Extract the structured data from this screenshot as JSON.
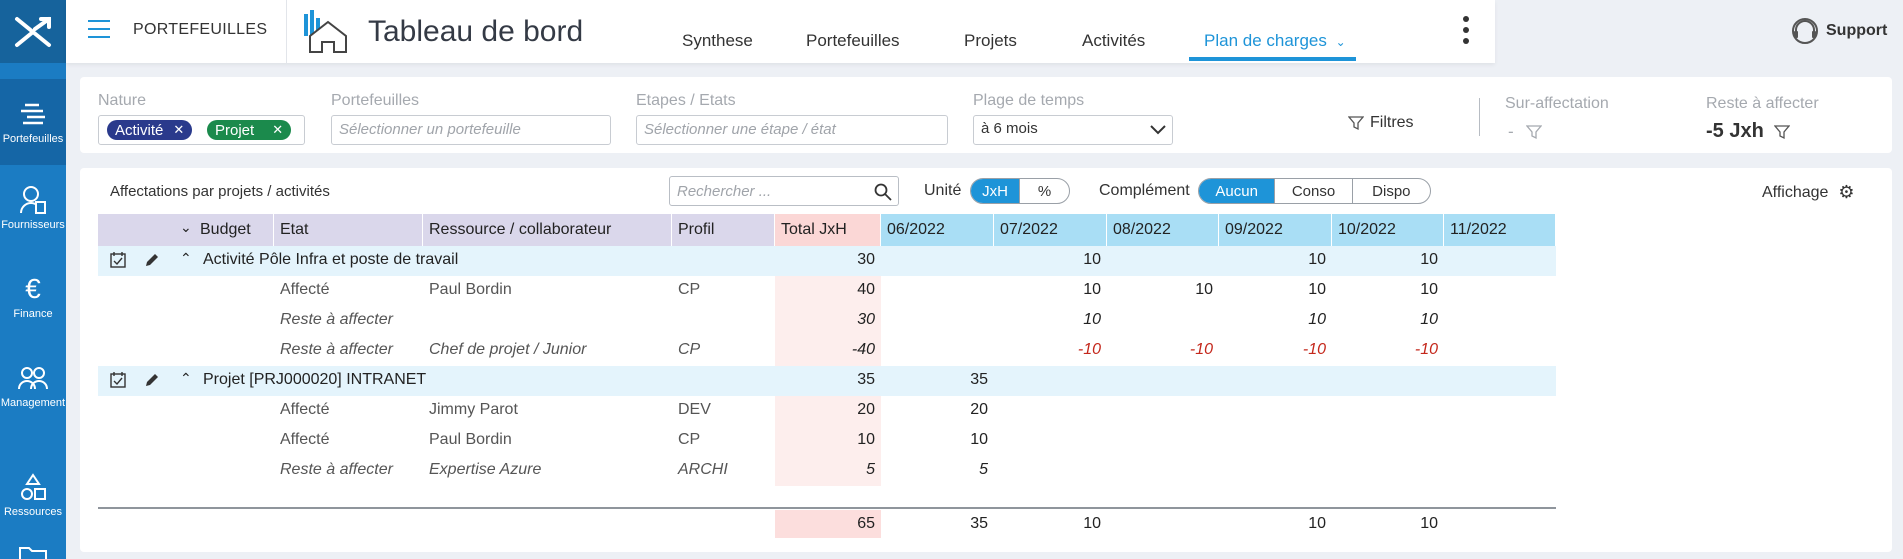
{
  "sidebar": {
    "items": [
      {
        "label": "Portefeuilles",
        "icon": "portfolio-icon"
      },
      {
        "label": "Fournisseurs",
        "icon": "supplier-icon"
      },
      {
        "label": "Finance",
        "icon": "euro-icon"
      },
      {
        "label": "Management",
        "icon": "team-icon"
      },
      {
        "label": "Ressources",
        "icon": "resources-icon"
      }
    ]
  },
  "header": {
    "section_label": "PORTEFEUILLES",
    "title": "Tableau de bord",
    "tabs": [
      {
        "label": "Synthese"
      },
      {
        "label": "Portefeuilles"
      },
      {
        "label": "Projets"
      },
      {
        "label": "Activités"
      },
      {
        "label": "Plan de charges",
        "active": true
      }
    ],
    "support_label": "Support"
  },
  "filters": {
    "nature_label": "Nature",
    "nature_chips": [
      {
        "label": "Activité",
        "color": "#2a3a8c"
      },
      {
        "label": "Projet",
        "color": "#1b8a4c"
      }
    ],
    "portefeuilles_label": "Portefeuilles",
    "portefeuilles_placeholder": "Sélectionner un portefeuille",
    "etapes_label": "Etapes / Etats",
    "etapes_placeholder": "Sélectionner une étape / état",
    "plage_label": "Plage de temps",
    "plage_value": "à 6 mois",
    "filtres_label": "Filtres",
    "sur_affectation_label": "Sur-affectation",
    "sur_affectation_value": "-",
    "reste_label": "Reste à affecter",
    "reste_value": "-5 Jxh"
  },
  "toolbar": {
    "section_title": "Affectations par projets / activités",
    "search_placeholder": "Rechercher ...",
    "unite_label": "Unité",
    "unite_options": [
      "JxH",
      "%"
    ],
    "complement_label": "Complément",
    "complement_options": [
      "Aucun",
      "Conso",
      "Dispo"
    ],
    "affichage_label": "Affichage"
  },
  "table": {
    "headers": {
      "budget": "Budget",
      "etat": "Etat",
      "ressource": "Ressource / collaborateur",
      "profil": "Profil",
      "total": "Total JxH",
      "months": [
        "06/2022",
        "07/2022",
        "08/2022",
        "09/2022",
        "10/2022",
        "11/2022"
      ]
    },
    "groups": [
      {
        "title": "Activité Pôle Infra et poste de travail",
        "total": "30",
        "months": [
          "",
          "10",
          "",
          "10",
          "10",
          ""
        ],
        "rows": [
          {
            "etat": "Affecté",
            "ressource": "Paul Bordin",
            "profil": "CP",
            "total": "40",
            "months": [
              "",
              "10",
              "10",
              "10",
              "10",
              ""
            ],
            "italic": false,
            "negative": false
          },
          {
            "etat": "Reste à affecter",
            "ressource": "",
            "profil": "",
            "total": "30",
            "months": [
              "",
              "10",
              "",
              "10",
              "10",
              ""
            ],
            "italic": true,
            "negative": false
          },
          {
            "etat": "Reste à affecter",
            "ressource": "Chef de projet / Junior",
            "profil": "CP",
            "total": "-40",
            "months": [
              "",
              "-10",
              "-10",
              "-10",
              "-10",
              ""
            ],
            "italic": true,
            "negative": true
          }
        ]
      },
      {
        "title": "Projet [PRJ000020] INTRANET",
        "total": "35",
        "months": [
          "35",
          "",
          "",
          "",
          "",
          ""
        ],
        "rows": [
          {
            "etat": "Affecté",
            "ressource": "Jimmy Parot",
            "profil": "DEV",
            "total": "20",
            "months": [
              "20",
              "",
              "",
              "",
              "",
              ""
            ],
            "italic": false,
            "negative": false
          },
          {
            "etat": "Affecté",
            "ressource": "Paul Bordin",
            "profil": "CP",
            "total": "10",
            "months": [
              "10",
              "",
              "",
              "",
              "",
              ""
            ],
            "italic": false,
            "negative": false
          },
          {
            "etat": "Reste à affecter",
            "ressource": "Expertise Azure",
            "profil": "ARCHI",
            "total": "5",
            "months": [
              "5",
              "",
              "",
              "",
              "",
              ""
            ],
            "italic": true,
            "negative": false
          }
        ]
      }
    ],
    "totals": {
      "total": "65",
      "months": [
        "35",
        "10",
        "",
        "10",
        "10",
        ""
      ]
    }
  },
  "colors": {
    "accent": "#1e94d8",
    "sidebar": "#1b7cc3",
    "negative": "#c4271b"
  }
}
